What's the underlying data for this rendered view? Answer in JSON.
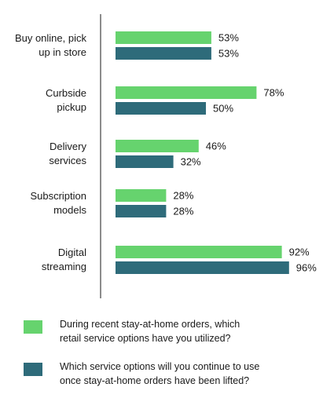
{
  "chart_data": {
    "type": "bar",
    "orientation": "horizontal",
    "categories": [
      [
        "Buy online, pick",
        "up in store"
      ],
      [
        "Curbside",
        "pickup"
      ],
      [
        "Delivery",
        "services"
      ],
      [
        "Subscription",
        "models"
      ],
      [
        "Digital",
        "streaming"
      ]
    ],
    "series": [
      {
        "values": [
          53,
          78,
          46,
          28,
          92
        ],
        "color": "#66d36e",
        "legend": [
          "During recent stay-at-home orders, which",
          "retail service options have you utilized?"
        ]
      },
      {
        "values": [
          53,
          50,
          32,
          28,
          96
        ],
        "color": "#2e6b7a",
        "legend": [
          "Which service options will you continue to use",
          "once stay-at-home orders have been lifted?"
        ]
      }
    ],
    "value_suffix": "%",
    "xlim": [
      0,
      100
    ],
    "grid": false,
    "legend_position": "bottom"
  }
}
